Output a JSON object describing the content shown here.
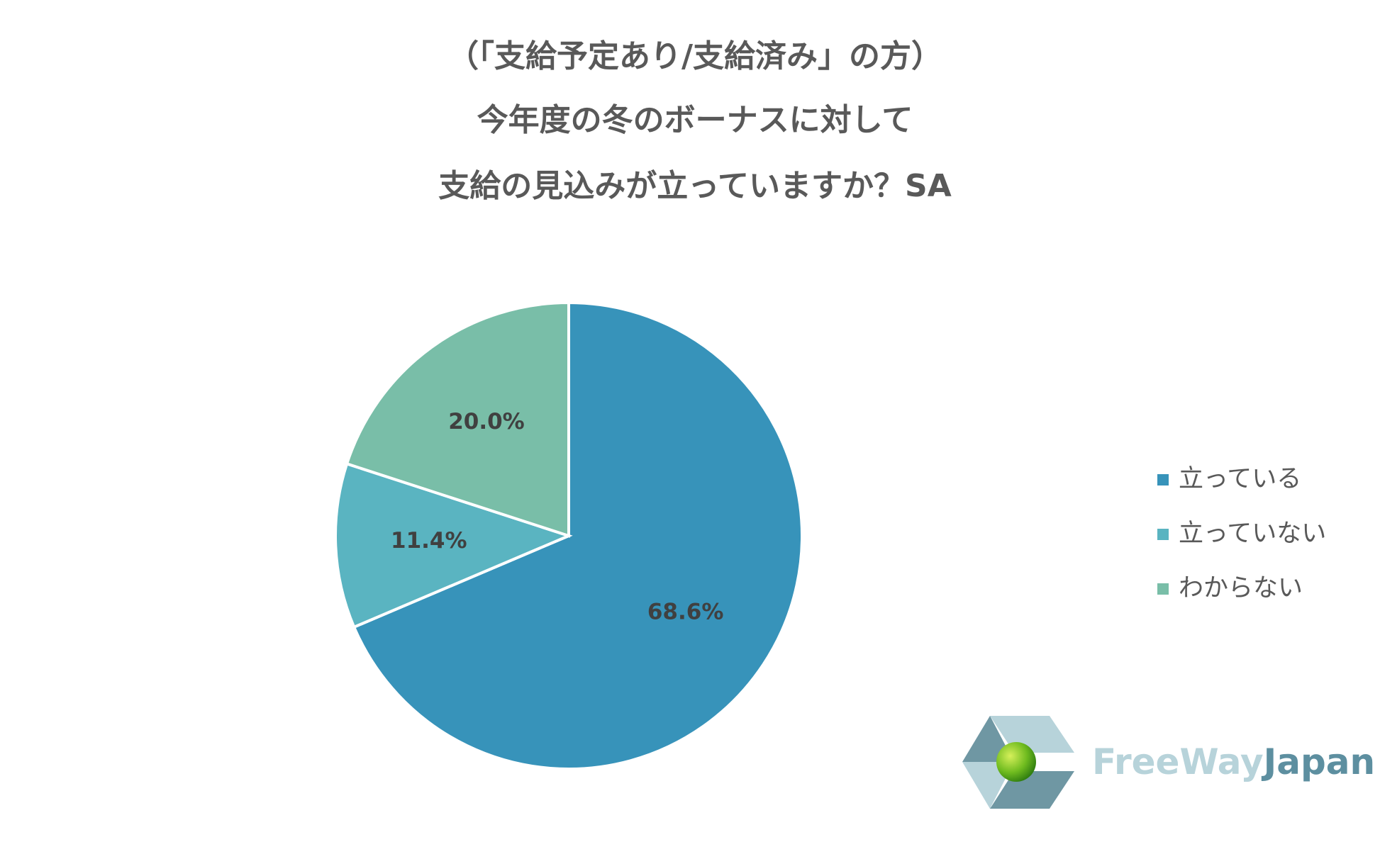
{
  "chart_data": {
    "type": "pie",
    "title": [
      "（「支給予定あり/支給済み」の方）",
      "今年度の冬のボーナスに対して",
      "支給の見込みが立っていますか？SA"
    ],
    "categories": [
      "立っている",
      "立っていない",
      "わからない"
    ],
    "values": [
      68.6,
      11.4,
      20.0
    ],
    "value_labels": [
      "68.6%",
      "11.4%",
      "20.0%"
    ],
    "colors": [
      "#3793ba",
      "#5ab4c1",
      "#79bea8"
    ],
    "legend": "right"
  },
  "logo": [
    "FreeWay",
    "Japan"
  ]
}
